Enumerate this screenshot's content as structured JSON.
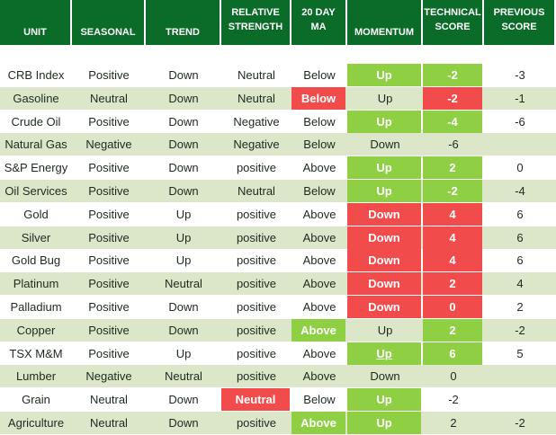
{
  "headers": {
    "unit": "UNIT",
    "seasonal": "SEASONAL",
    "trend": "TREND",
    "rel1": "RELATIVE",
    "rel2": "STRENGTH",
    "ma1": "20 DAY",
    "ma2": "MA",
    "momentum": "MOMENTUM",
    "tech1": "TECHNICAL",
    "tech2": "SCORE",
    "prev1": "PREVIOUS",
    "prev2": "SCORE"
  },
  "colors": {
    "header_bg": "#0b6b28",
    "band": "#dbe7c8",
    "green": "#8fcf43",
    "red": "#f24b4b"
  },
  "rows": [
    {
      "unit": "CRB Index",
      "seasonal": "Positive",
      "trend": "Down",
      "rs": "Neutral",
      "ma": "Below",
      "momentum": "Up",
      "tech": "-2",
      "prev": "-3"
    },
    {
      "unit": "Gasoline",
      "seasonal": "Neutral",
      "trend": "Down",
      "rs": "Neutral",
      "ma": "Below",
      "momentum": "Up",
      "tech": "-2",
      "prev": "-1"
    },
    {
      "unit": "Crude Oil",
      "seasonal": "Positive",
      "trend": "Down",
      "rs": "Negative",
      "ma": "Below",
      "momentum": "Up",
      "tech": "-4",
      "prev": "-6"
    },
    {
      "unit": "Natural Gas",
      "seasonal": "Negative",
      "trend": "Down",
      "rs": "Negative",
      "ma": "Below",
      "momentum": "Down",
      "tech": "-6",
      "prev": ""
    },
    {
      "unit": "S&P Energy",
      "seasonal": "Positive",
      "trend": "Down",
      "rs": "positive",
      "ma": "Above",
      "momentum": "Up",
      "tech": "2",
      "prev": "0"
    },
    {
      "unit": "Oil Services",
      "seasonal": "Positive",
      "trend": "Down",
      "rs": "Neutral",
      "ma": "Below",
      "momentum": "Up",
      "tech": "-2",
      "prev": "-4"
    },
    {
      "unit": "Gold",
      "seasonal": "Positive",
      "trend": "Up",
      "rs": "positive",
      "ma": "Above",
      "momentum": "Down",
      "tech": "4",
      "prev": "6"
    },
    {
      "unit": "Silver",
      "seasonal": "Positive",
      "trend": "Up",
      "rs": "positive",
      "ma": "Above",
      "momentum": "Down",
      "tech": "4",
      "prev": "6"
    },
    {
      "unit": "Gold Bug",
      "seasonal": "Positive",
      "trend": "Up",
      "rs": "positive",
      "ma": "Above",
      "momentum": "Down",
      "tech": "4",
      "prev": "6"
    },
    {
      "unit": "Platinum",
      "seasonal": "Positive",
      "trend": "Neutral",
      "rs": "positive",
      "ma": "Above",
      "momentum": "Down",
      "tech": "2",
      "prev": "4"
    },
    {
      "unit": "Palladium",
      "seasonal": "Positive",
      "trend": "Down",
      "rs": "positive",
      "ma": "Above",
      "momentum": "Down",
      "tech": "0",
      "prev": "2"
    },
    {
      "unit": "Copper",
      "seasonal": "Positive",
      "trend": "Down",
      "rs": "positive",
      "ma": "Above",
      "momentum": "Up",
      "tech": "2",
      "prev": "-2"
    },
    {
      "unit": "TSX M&M",
      "seasonal": "Positive",
      "trend": "Up",
      "rs": "positive",
      "ma": "Above",
      "momentum": "Up",
      "tech": "6",
      "prev": "5"
    },
    {
      "unit": "Lumber",
      "seasonal": "Negative",
      "trend": "Neutral",
      "rs": "positive",
      "ma": "Above",
      "momentum": "Down",
      "tech": "0",
      "prev": ""
    },
    {
      "unit": "Grain",
      "seasonal": "Neutral",
      "trend": "Down",
      "rs": "Neutral",
      "ma": "Below",
      "momentum": "Up",
      "tech": "-2",
      "prev": ""
    },
    {
      "unit": "Agriculture",
      "seasonal": "Neutral",
      "trend": "Down",
      "rs": "positive",
      "ma": "Above",
      "momentum": "Up",
      "tech": "2",
      "prev": "-2"
    }
  ]
}
